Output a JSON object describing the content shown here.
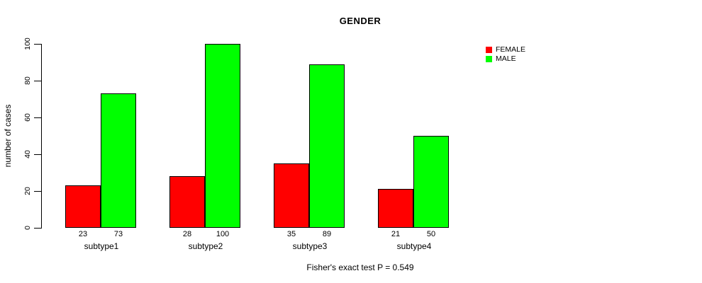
{
  "chart_data": {
    "type": "bar",
    "title": "GENDER",
    "ylabel": "number of cases",
    "xlabel": "",
    "categories": [
      "subtype1",
      "subtype2",
      "subtype3",
      "subtype4"
    ],
    "series": [
      {
        "name": "FEMALE",
        "color": "#ff0000",
        "values": [
          23,
          28,
          35,
          21
        ]
      },
      {
        "name": "MALE",
        "color": "#00ff00",
        "values": [
          73,
          100,
          89,
          50
        ]
      }
    ],
    "ylim": [
      0,
      100
    ],
    "yticks": [
      0,
      20,
      40,
      60,
      80,
      100
    ],
    "grid": false,
    "show_value_labels": true,
    "bar_border_color": "#000000",
    "legend_position": "right",
    "footnote": "Fisher's exact test P = 0.549"
  }
}
